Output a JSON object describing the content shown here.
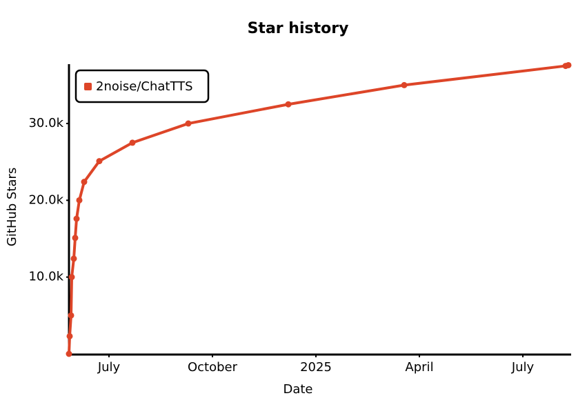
{
  "chart_data": {
    "type": "line",
    "title": "Star history",
    "xlabel": "Date",
    "ylabel": "GitHub Stars",
    "xlim": [
      -7.16,
      7.36
    ],
    "xticks": [
      {
        "value": -6,
        "label": "July"
      },
      {
        "value": -3,
        "label": "October"
      },
      {
        "value": 0,
        "label": "2025"
      },
      {
        "value": 3,
        "label": "April"
      },
      {
        "value": 6,
        "label": "July"
      }
    ],
    "ylim": [
      0,
      38000
    ],
    "yticks": [
      {
        "value": 10000,
        "label": "10.0k"
      },
      {
        "value": 20000,
        "label": "20.0k"
      },
      {
        "value": 30000,
        "label": "30.0k"
      }
    ],
    "legend": "top-left",
    "series": [
      {
        "name": "2noise/ChatTTS",
        "color": "#dd4528",
        "x": [
          -7.16,
          -7.14,
          -7.1,
          -7.08,
          -7.02,
          -6.98,
          -6.94,
          -6.86,
          -6.72,
          -6.28,
          -5.32,
          -3.7,
          -0.8,
          2.56,
          7.24,
          7.32
        ],
        "values": [
          0,
          2300,
          5000,
          10000,
          12400,
          15100,
          17600,
          20000,
          22400,
          25100,
          27500,
          30000,
          32500,
          35000,
          37500,
          37600
        ]
      }
    ]
  }
}
